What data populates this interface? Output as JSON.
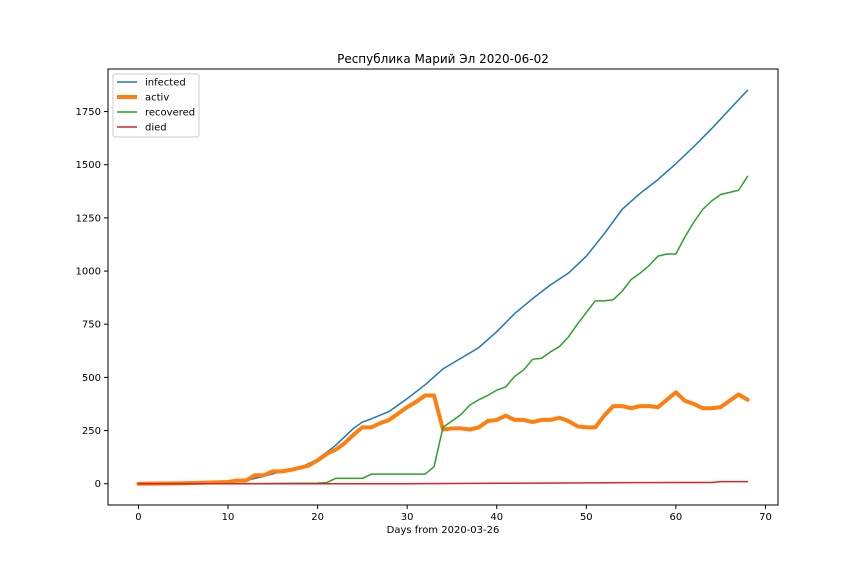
{
  "chart_data": {
    "type": "line",
    "title": "Республика Марий Эл 2020-06-02",
    "xlabel": "Days from 2020-03-26",
    "ylabel": "",
    "xlim": [
      -3.4,
      71.4
    ],
    "ylim": [
      -100,
      1950
    ],
    "xticks": [
      0,
      10,
      20,
      30,
      40,
      50,
      60,
      70
    ],
    "yticks": [
      0,
      250,
      500,
      750,
      1000,
      1250,
      1500,
      1750
    ],
    "grid": false,
    "legend_position": "upper left",
    "series": [
      {
        "name": "infected",
        "color": "#1f77b4",
        "linewidth": 1.5,
        "x": [
          0,
          5,
          10,
          12,
          14,
          16,
          18,
          20,
          22,
          24,
          25,
          26,
          28,
          30,
          32,
          34,
          36,
          38,
          40,
          42,
          44,
          46,
          48,
          50,
          52,
          54,
          56,
          58,
          60,
          62,
          64,
          66,
          68
        ],
        "values": [
          0,
          2,
          8,
          15,
          35,
          58,
          75,
          115,
          180,
          260,
          290,
          305,
          340,
          400,
          465,
          540,
          590,
          640,
          715,
          800,
          870,
          935,
          990,
          1070,
          1175,
          1290,
          1365,
          1430,
          1505,
          1585,
          1670,
          1760,
          1850
        ]
      },
      {
        "name": "activ",
        "color": "#ff7f0e",
        "linewidth": 4,
        "x": [
          0,
          5,
          10,
          11,
          12,
          13,
          14,
          15,
          16,
          17,
          18,
          19,
          20,
          21,
          22,
          23,
          24,
          25,
          26,
          27,
          28,
          29,
          30,
          31,
          32,
          33,
          34,
          35,
          36,
          37,
          38,
          39,
          40,
          41,
          42,
          43,
          44,
          45,
          46,
          47,
          48,
          49,
          50,
          51,
          52,
          53,
          54,
          55,
          56,
          57,
          58,
          59,
          60,
          61,
          62,
          63,
          64,
          65,
          66,
          67,
          68
        ],
        "values": [
          0,
          2,
          8,
          15,
          15,
          40,
          40,
          58,
          58,
          65,
          75,
          85,
          110,
          140,
          160,
          190,
          230,
          265,
          265,
          285,
          300,
          330,
          360,
          385,
          415,
          415,
          255,
          260,
          260,
          255,
          265,
          295,
          300,
          320,
          300,
          300,
          290,
          300,
          300,
          310,
          295,
          270,
          265,
          265,
          320,
          365,
          365,
          355,
          365,
          365,
          360,
          395,
          430,
          390,
          375,
          355,
          355,
          360,
          390,
          420,
          395
        ]
      },
      {
        "name": "recovered",
        "color": "#2ca02c",
        "linewidth": 1.5,
        "x": [
          0,
          10,
          18,
          20,
          21,
          22,
          25,
          26,
          30,
          32,
          33,
          34,
          35,
          36,
          37,
          38,
          39,
          40,
          41,
          42,
          43,
          44,
          45,
          46,
          47,
          48,
          49,
          50,
          51,
          52,
          53,
          54,
          55,
          56,
          57,
          58,
          59,
          60,
          61,
          62,
          63,
          64,
          65,
          66,
          67,
          68
        ],
        "values": [
          0,
          0,
          2,
          3,
          5,
          25,
          25,
          45,
          45,
          45,
          80,
          265,
          295,
          325,
          370,
          395,
          415,
          440,
          455,
          505,
          535,
          585,
          590,
          620,
          645,
          690,
          750,
          805,
          860,
          860,
          865,
          905,
          960,
          990,
          1025,
          1070,
          1080,
          1080,
          1160,
          1230,
          1290,
          1330,
          1360,
          1370,
          1380,
          1445
        ]
      },
      {
        "name": "died",
        "color": "#d62728",
        "linewidth": 1.5,
        "x": [
          0,
          10,
          20,
          30,
          40,
          45,
          50,
          55,
          60,
          64,
          65,
          68
        ],
        "values": [
          0,
          0,
          0,
          0,
          2,
          3,
          4,
          5,
          6,
          6,
          10,
          10
        ]
      }
    ]
  }
}
